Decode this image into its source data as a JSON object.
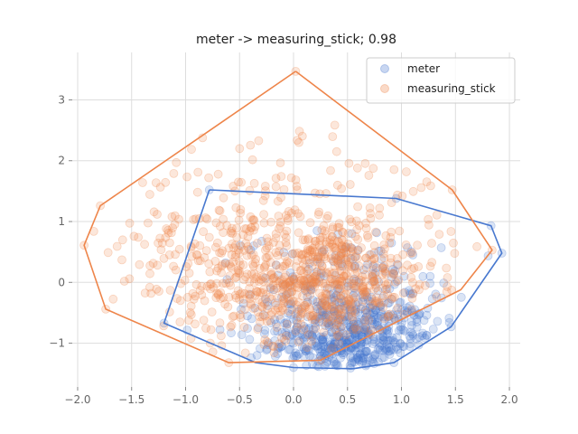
{
  "chart_data": {
    "type": "scatter",
    "title": "meter -> measuring_stick; 0.98",
    "xlabel": "",
    "ylabel": "",
    "xlim": [
      -2.05,
      2.1
    ],
    "ylim": [
      -1.72,
      3.78
    ],
    "x_ticks": [
      -2.0,
      -1.5,
      -1.0,
      -0.5,
      0.0,
      0.5,
      1.0,
      1.5,
      2.0
    ],
    "x_tick_labels": [
      "−2.0",
      "−1.5",
      "−1.0",
      "−0.5",
      "0.0",
      "0.5",
      "1.0",
      "1.5",
      "2.0"
    ],
    "y_ticks": [
      -1,
      0,
      1,
      2,
      3
    ],
    "y_tick_labels": [
      "−1",
      "0",
      "1",
      "2",
      "3"
    ],
    "grid": true,
    "legend_position": "top-right",
    "series": [
      {
        "name": "meter",
        "color": "#4878cf",
        "point_alpha": 0.2,
        "hull": [
          [
            -0.78,
            1.52
          ],
          [
            0.95,
            1.38
          ],
          [
            1.83,
            0.93
          ],
          [
            1.93,
            0.48
          ],
          [
            1.46,
            -0.73
          ],
          [
            0.93,
            -1.32
          ],
          [
            0.55,
            -1.42
          ],
          [
            0.0,
            -1.4
          ],
          [
            -0.35,
            -1.32
          ],
          [
            -1.2,
            -0.67
          ],
          [
            -0.78,
            1.52
          ]
        ],
        "cluster": {
          "cx": 0.55,
          "cy": -0.95,
          "sx": 0.38,
          "sy": 0.35,
          "n": 420
        },
        "spread": {
          "cx": 0.45,
          "cy": -0.3,
          "sx": 0.45,
          "sy": 0.55,
          "n": 230
        },
        "outliers": [
          [
            -0.78,
            1.52
          ],
          [
            0.95,
            1.38
          ],
          [
            1.83,
            0.93
          ],
          [
            1.93,
            0.48
          ],
          [
            1.46,
            -0.73
          ],
          [
            0.93,
            -1.32
          ],
          [
            -1.2,
            -0.67
          ],
          [
            0.0,
            -1.4
          ]
        ]
      },
      {
        "name": "measuring_stick",
        "color": "#ee854a",
        "point_alpha": 0.2,
        "hull": [
          [
            0.02,
            3.47
          ],
          [
            1.47,
            1.52
          ],
          [
            1.84,
            0.53
          ],
          [
            1.55,
            -0.12
          ],
          [
            0.25,
            -1.28
          ],
          [
            -0.6,
            -1.32
          ],
          [
            -1.74,
            -0.44
          ],
          [
            -1.94,
            0.61
          ],
          [
            -1.79,
            1.26
          ],
          [
            0.02,
            3.47
          ]
        ],
        "cluster": {
          "cx": 0.2,
          "cy": -0.05,
          "sx": 0.55,
          "sy": 0.45,
          "n": 520
        },
        "spread": {
          "cx": -0.1,
          "cy": 0.6,
          "sx": 0.8,
          "sy": 0.75,
          "n": 400
        },
        "outliers": [
          [
            0.02,
            3.47
          ],
          [
            1.47,
            1.52
          ],
          [
            1.84,
            0.53
          ],
          [
            -1.94,
            0.61
          ],
          [
            -1.79,
            1.26
          ],
          [
            -1.74,
            -0.44
          ],
          [
            -0.6,
            -1.32
          ],
          [
            0.25,
            -1.28
          ],
          [
            0.05,
            2.3
          ],
          [
            -0.5,
            2.2
          ],
          [
            0.4,
            2.15
          ]
        ]
      }
    ]
  }
}
